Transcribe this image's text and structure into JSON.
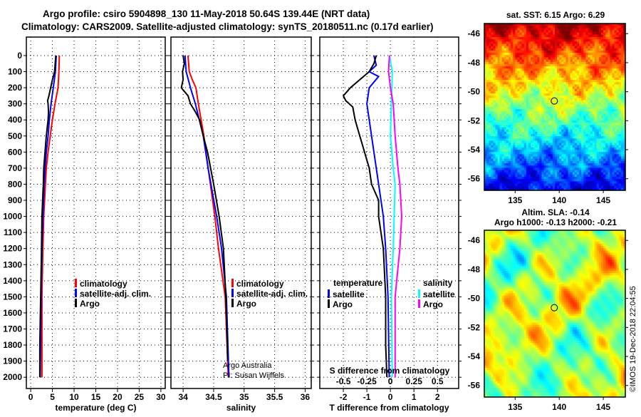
{
  "title_line1": "Argo profile: csiro 5904898_130 11-May-2018 50.64S 139.44E (NRT data)",
  "title_line2": "Climatology: CARS2009. Satellite-adjusted climatology: synTS_20180511.nc (0.17d earlier)",
  "credit": "©IMOS 19-Dec-2018 22:04:55",
  "attribution_1": "Argo Australia",
  "attribution_2": "PI: Susan Wijffels",
  "colors": {
    "climatology": "#ff0000",
    "satellite": "#0000ff",
    "argo": "#000000",
    "sal_satellite": "#00ffff",
    "sal_argo": "#ff00ff"
  },
  "chart_data": [
    {
      "type": "line",
      "id": "temperature",
      "xlabel": "temperature (deg C)",
      "ylabel": "depth",
      "xlim": [
        -1,
        31
      ],
      "ylim": [
        2070,
        -120
      ],
      "xticks": [
        "0",
        "5",
        "10",
        "15",
        "20",
        "25",
        "30"
      ],
      "xtick_values": [
        0,
        5,
        10,
        15,
        20,
        25,
        30
      ],
      "legend": [
        "climatology",
        "satellite-adj. clim.",
        "Argo"
      ],
      "series": [
        {
          "name": "climatology",
          "color": "#ff0000",
          "depth": [
            0,
            100,
            200,
            300,
            400,
            500,
            600,
            700,
            800,
            1000,
            1200,
            1500,
            2000
          ],
          "values": [
            6.6,
            6.5,
            6.3,
            5.6,
            5.0,
            4.5,
            4.0,
            3.6,
            3.4,
            3.0,
            2.8,
            2.6,
            2.6
          ]
        },
        {
          "name": "satellite-adj. clim.",
          "color": "#0000ff",
          "depth": [
            0,
            100,
            200,
            300,
            400,
            500,
            600,
            700,
            800,
            1000,
            1200,
            1500,
            2000
          ],
          "values": [
            5.9,
            5.7,
            5.2,
            4.7,
            4.3,
            4.0,
            3.6,
            3.3,
            3.1,
            2.8,
            2.6,
            2.4,
            2.2
          ]
        },
        {
          "name": "Argo",
          "color": "#000000",
          "depth": [
            0,
            100,
            150,
            200,
            250,
            280,
            300,
            350,
            400,
            500,
            600,
            700,
            800,
            1000,
            1200,
            1500,
            1800,
            2000
          ],
          "values": [
            5.8,
            5.5,
            5.0,
            4.6,
            4.2,
            3.9,
            4.0,
            4.1,
            4.0,
            3.6,
            3.3,
            3.0,
            2.9,
            2.6,
            2.5,
            2.3,
            2.1,
            2.1
          ]
        }
      ]
    },
    {
      "type": "line",
      "id": "salinity",
      "xlabel": "salinity",
      "xlim": [
        33.8,
        36.1
      ],
      "ylim": [
        2070,
        -120
      ],
      "xticks": [
        "34",
        "34.5",
        "35",
        "35.5",
        "36"
      ],
      "xtick_values": [
        34,
        34.5,
        35,
        35.5,
        36
      ],
      "legend": [
        "climatology",
        "satellite-adj. clim.",
        "Argo"
      ],
      "series": [
        {
          "name": "climatology",
          "color": "#ff0000",
          "depth": [
            0,
            100,
            150,
            200,
            300,
            500,
            700,
            1000,
            1200,
            1500,
            2000
          ],
          "values": [
            34.08,
            34.1,
            34.15,
            34.21,
            34.25,
            34.34,
            34.41,
            34.52,
            34.58,
            34.69,
            34.74
          ]
        },
        {
          "name": "satellite-adj. clim.",
          "color": "#0000ff",
          "depth": [
            0,
            100,
            200,
            300,
            500,
            700,
            1000,
            1200,
            1500,
            2000
          ],
          "values": [
            34.03,
            34.05,
            34.12,
            34.2,
            34.33,
            34.41,
            34.55,
            34.63,
            34.71,
            34.75
          ]
        },
        {
          "name": "Argo",
          "color": "#000000",
          "depth": [
            0,
            50,
            100,
            150,
            200,
            250,
            300,
            350,
            400,
            500,
            600,
            800,
            1000,
            1200,
            1500,
            1900
          ],
          "values": [
            34.0,
            34.02,
            33.99,
            34.0,
            33.97,
            34.08,
            34.12,
            34.2,
            34.27,
            34.33,
            34.4,
            34.5,
            34.59,
            34.66,
            34.7,
            34.73
          ]
        }
      ]
    },
    {
      "type": "line",
      "id": "difference",
      "xlabel": "T difference from climatology",
      "xlabel2": "S difference from climatology",
      "xlim": [
        -3,
        2.9
      ],
      "ylim": [
        2070,
        -120
      ],
      "xticks": [
        "-2",
        "-1",
        "0",
        "1",
        "2"
      ],
      "xtick_values": [
        -2,
        -1,
        0,
        1,
        2
      ],
      "xticks2": [
        "-0.5",
        "-0.25",
        "0",
        "0.25",
        "0.5"
      ],
      "xtick_values2": [
        -0.5,
        -0.25,
        0,
        0.25,
        0.5
      ],
      "legend_t_title": "temperature",
      "legend_t": [
        "satellite",
        "Argo"
      ],
      "legend_s_title": "salinity",
      "legend_s": [
        "satellite",
        "Argo"
      ],
      "series": [
        {
          "name": "T satellite",
          "axis": "T",
          "color": "#0000ff",
          "depth": [
            0,
            60,
            100,
            130,
            200,
            300,
            400,
            500,
            700,
            1000,
            1200,
            1500,
            2000
          ],
          "values": [
            -0.7,
            -0.6,
            -0.9,
            -0.5,
            -0.9,
            -1.0,
            -0.9,
            -0.8,
            -0.6,
            -0.3,
            -0.2,
            -0.1,
            -0.05
          ]
        },
        {
          "name": "T Argo",
          "axis": "T",
          "color": "#000000",
          "depth": [
            0,
            50,
            100,
            150,
            200,
            250,
            280,
            320,
            400,
            500,
            600,
            700,
            800,
            900,
            1000,
            1200,
            1500,
            1800,
            2000
          ],
          "values": [
            -0.6,
            -0.7,
            -0.9,
            -1.3,
            -1.7,
            -2.0,
            -1.9,
            -1.6,
            -1.5,
            -1.3,
            -1.1,
            -0.9,
            -0.8,
            -0.5,
            -0.5,
            -0.3,
            -0.2,
            -0.2,
            -0.15
          ]
        },
        {
          "name": "S satellite",
          "axis": "S",
          "color": "#00ffff",
          "depth": [
            0,
            100,
            300,
            500,
            700,
            800,
            1000,
            1200,
            1500,
            2000
          ],
          "values": [
            -0.01,
            0.02,
            0.01,
            0.0,
            0.03,
            0.05,
            0.04,
            0.03,
            0.01,
            0.02
          ]
        },
        {
          "name": "S Argo",
          "axis": "S",
          "color": "#ff00ff",
          "depth": [
            0,
            100,
            200,
            300,
            500,
            700,
            800,
            1000,
            1200,
            1500,
            2000
          ],
          "values": [
            -0.01,
            -0.02,
            0.0,
            0.03,
            0.05,
            0.08,
            0.1,
            0.12,
            0.1,
            0.05,
            0.05
          ]
        }
      ]
    },
    {
      "type": "heatmap",
      "id": "sst_map",
      "title": "sat. SST: 6.15 Argo: 6.29",
      "xlim": [
        131.5,
        147.5
      ],
      "ylim": [
        -56.8,
        -45.3
      ],
      "xticks": [
        "135",
        "140",
        "145"
      ],
      "xtick_values": [
        135,
        140,
        145
      ],
      "yticks": [
        "-46",
        "-48",
        "-50",
        "-52",
        "-54",
        "-56"
      ],
      "ytick_values": [
        -46,
        -48,
        -50,
        -52,
        -54,
        -56
      ],
      "marker": {
        "lon": 139.44,
        "lat": -50.64
      }
    },
    {
      "type": "heatmap",
      "id": "sla_map",
      "title1": "Altim. SLA: -0.14",
      "title2": "Argo h1000: -0.13 h2000: -0.21",
      "xlim": [
        131.5,
        147.5
      ],
      "ylim": [
        -56.8,
        -45.3
      ],
      "xticks": [
        "135",
        "140",
        "145"
      ],
      "xtick_values": [
        135,
        140,
        145
      ],
      "yticks": [
        "-46",
        "-48",
        "-50",
        "-52",
        "-54",
        "-56"
      ],
      "ytick_values": [
        -46,
        -48,
        -50,
        -52,
        -54,
        -56
      ],
      "marker": {
        "lon": 139.44,
        "lat": -50.64
      }
    }
  ],
  "depth_ticks": [
    "0",
    "100",
    "200",
    "300",
    "400",
    "500",
    "600",
    "700",
    "800",
    "900",
    "1000",
    "1100",
    "1200",
    "1300",
    "1400",
    "1500",
    "1600",
    "1700",
    "1800",
    "1900",
    "2000"
  ]
}
